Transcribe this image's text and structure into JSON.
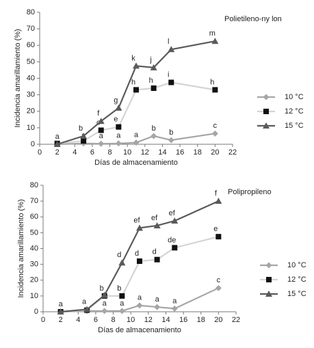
{
  "chart_data": [
    {
      "type": "line",
      "annotation": "Polietileno-ny lon",
      "x_label": "Días de almacenamiento",
      "y_label": "Incidencia amarillamiento (%)",
      "x": [
        2,
        5,
        7,
        9,
        11,
        13,
        15,
        20
      ],
      "xlim": [
        0,
        22
      ],
      "xticks": [
        0,
        2,
        4,
        6,
        8,
        10,
        12,
        14,
        16,
        18,
        20,
        22
      ],
      "ylim": [
        0,
        80
      ],
      "yticks": [
        0,
        10,
        20,
        30,
        40,
        50,
        60,
        70,
        80
      ],
      "legend": "right",
      "series": [
        {
          "name": "10 °C",
          "color": "#a6a6a6",
          "marker": "diamond",
          "values": [
            0,
            0.5,
            0.3,
            0.5,
            1,
            5,
            2.5,
            6.5
          ],
          "point_labels": [
            "a",
            "a",
            "a",
            "a",
            "a",
            "b",
            "b",
            "c"
          ]
        },
        {
          "name": "12 °C",
          "color": "#d4d4d4",
          "marker": "square",
          "values": [
            0.5,
            2,
            8.5,
            10.5,
            33,
            34,
            37.5,
            33
          ],
          "point_labels": [
            null,
            null,
            "c",
            "e",
            "h",
            "h",
            "i",
            "h"
          ]
        },
        {
          "name": "15 °C",
          "color": "#5a5a5a",
          "marker": "triangle",
          "values": [
            0,
            5,
            14,
            22,
            47.5,
            46.5,
            57.5,
            62.5
          ],
          "point_labels": [
            null,
            "b",
            "f",
            "g",
            "k",
            "j",
            "l",
            "m"
          ]
        }
      ]
    },
    {
      "type": "line",
      "annotation": "Polipropileno",
      "x_label": "Días de almacenamiento",
      "y_label": "Incidencia amarillamiento (%)",
      "x": [
        2,
        5,
        7,
        9,
        11,
        13,
        15,
        20
      ],
      "xlim": [
        0,
        22
      ],
      "xticks": [
        0,
        2,
        4,
        6,
        8,
        10,
        12,
        14,
        16,
        18,
        20,
        22
      ],
      "ylim": [
        0,
        80
      ],
      "yticks": [
        0,
        10,
        20,
        30,
        40,
        50,
        60,
        70,
        80
      ],
      "legend": "right",
      "series": [
        {
          "name": "10 °C",
          "color": "#a6a6a6",
          "marker": "diamond",
          "values": [
            0,
            0.5,
            0.5,
            0.5,
            4,
            3,
            2,
            15
          ],
          "point_labels": [
            "a",
            null,
            "a",
            "a",
            "a",
            "a",
            "a",
            "c"
          ]
        },
        {
          "name": "12 °C",
          "color": "#d4d4d4",
          "marker": "square",
          "values": [
            0,
            1,
            10,
            10,
            32,
            33,
            40.5,
            47.5
          ],
          "point_labels": [
            null,
            null,
            "b",
            "b",
            "d",
            "d",
            "de",
            "e"
          ]
        },
        {
          "name": "15 °C",
          "color": "#5a5a5a",
          "marker": "triangle",
          "values": [
            0,
            1.5,
            10.5,
            31,
            53,
            54.5,
            57.5,
            70
          ],
          "point_labels": [
            null,
            "a",
            null,
            "d",
            "ef",
            "ef",
            "ef",
            "f"
          ]
        }
      ]
    }
  ]
}
